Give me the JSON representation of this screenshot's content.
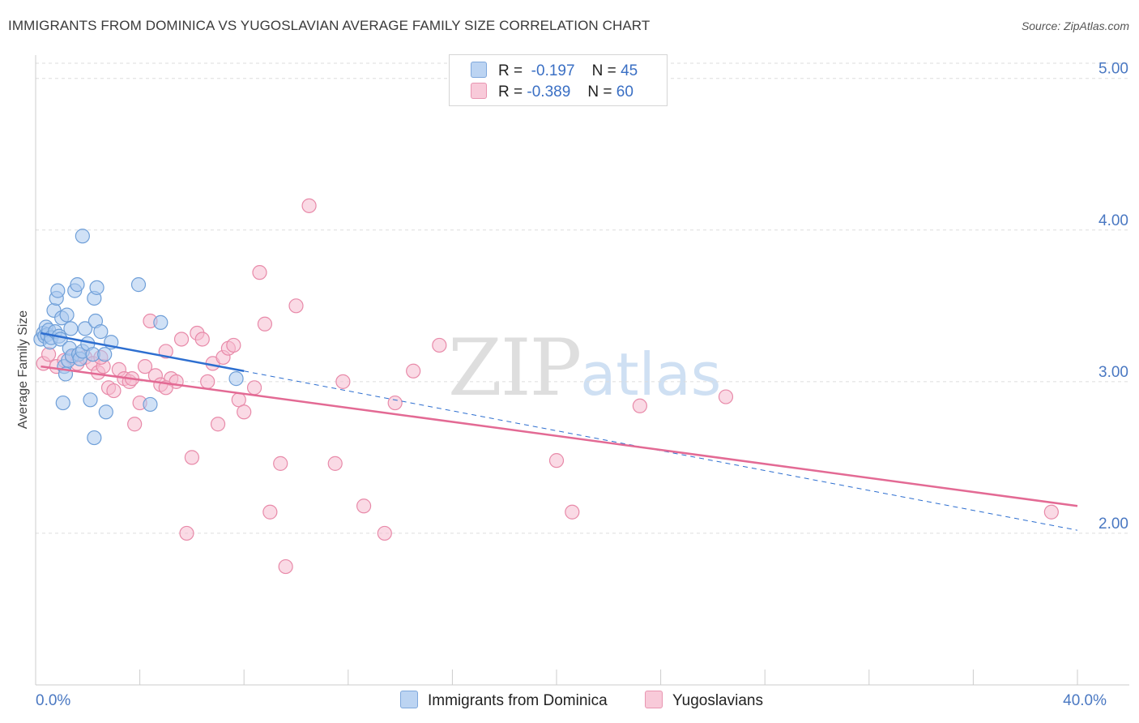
{
  "header": {
    "title": "IMMIGRANTS FROM DOMINICA VS YUGOSLAVIAN AVERAGE FAMILY SIZE CORRELATION CHART",
    "source": "Source: ZipAtlas.com"
  },
  "watermark": {
    "zip": "ZIP",
    "atlas": "atlas"
  },
  "legend": {
    "rows": [
      {
        "r_label": "R =",
        "r_value": "-0.197",
        "n_label": "N =",
        "n_value": "45"
      },
      {
        "r_label": "R =",
        "r_value": "-0.389",
        "n_label": "N =",
        "n_value": "60"
      }
    ]
  },
  "colors": {
    "series1_fill": "#aac8ee",
    "series1_stroke": "#6f9fd8",
    "series1_line": "#2e6fd0",
    "series2_fill": "#f6bcd0",
    "series2_stroke": "#e88aa9",
    "series2_line": "#e36a94",
    "axis_text": "#4a78c2",
    "grid": "#dddddd"
  },
  "chart_data": {
    "type": "scatter",
    "title": "IMMIGRANTS FROM DOMINICA VS YUGOSLAVIAN AVERAGE FAMILY SIZE CORRELATION CHART",
    "xlabel": "",
    "ylabel": "Average Family Size",
    "xlim": [
      0,
      40
    ],
    "ylim": [
      1.0,
      5.1
    ],
    "x_tick_labels": [
      "0.0%",
      "40.0%"
    ],
    "y_ticks": [
      2.0,
      3.0,
      4.0,
      5.0
    ],
    "y_tick_labels": [
      "2.00",
      "3.00",
      "4.00",
      "5.00"
    ],
    "series": [
      {
        "name": "Immigrants from Dominica",
        "R": -0.197,
        "N": 45,
        "trend": {
          "x0": 0.2,
          "y0": 3.32,
          "x1": 8.0,
          "y1": 3.07,
          "dash_to_x": 40.0,
          "dash_to_y": 2.02
        },
        "points": [
          [
            0.2,
            3.28
          ],
          [
            0.3,
            3.32
          ],
          [
            0.35,
            3.3
          ],
          [
            0.4,
            3.36
          ],
          [
            0.45,
            3.31
          ],
          [
            0.5,
            3.34
          ],
          [
            0.55,
            3.26
          ],
          [
            0.6,
            3.29
          ],
          [
            0.7,
            3.47
          ],
          [
            0.75,
            3.33
          ],
          [
            0.8,
            3.55
          ],
          [
            0.85,
            3.6
          ],
          [
            0.9,
            3.3
          ],
          [
            0.95,
            3.28
          ],
          [
            1.0,
            3.42
          ],
          [
            1.05,
            2.86
          ],
          [
            1.1,
            3.1
          ],
          [
            1.15,
            3.05
          ],
          [
            1.2,
            3.44
          ],
          [
            1.25,
            3.14
          ],
          [
            1.3,
            3.22
          ],
          [
            1.35,
            3.35
          ],
          [
            1.4,
            3.17
          ],
          [
            1.5,
            3.6
          ],
          [
            1.6,
            3.64
          ],
          [
            1.65,
            3.18
          ],
          [
            1.7,
            3.15
          ],
          [
            1.8,
            3.2
          ],
          [
            1.9,
            3.35
          ],
          [
            2.0,
            3.25
          ],
          [
            2.1,
            2.88
          ],
          [
            2.25,
            3.55
          ],
          [
            2.35,
            3.62
          ],
          [
            1.8,
            3.96
          ],
          [
            2.2,
            3.18
          ],
          [
            2.3,
            3.4
          ],
          [
            2.5,
            3.33
          ],
          [
            2.65,
            3.18
          ],
          [
            2.25,
            2.63
          ],
          [
            2.7,
            2.8
          ],
          [
            2.9,
            3.26
          ],
          [
            3.95,
            3.64
          ],
          [
            4.4,
            2.85
          ],
          [
            4.8,
            3.39
          ],
          [
            7.7,
            3.02
          ]
        ]
      },
      {
        "name": "Yugoslavians",
        "R": -0.389,
        "N": 60,
        "trend": {
          "x0": 0.2,
          "y0": 3.1,
          "x1": 40.0,
          "y1": 2.18
        },
        "points": [
          [
            0.3,
            3.12
          ],
          [
            0.5,
            3.18
          ],
          [
            0.8,
            3.1
          ],
          [
            1.1,
            3.14
          ],
          [
            1.4,
            3.16
          ],
          [
            1.6,
            3.12
          ],
          [
            1.9,
            3.16
          ],
          [
            2.2,
            3.12
          ],
          [
            2.4,
            3.06
          ],
          [
            2.6,
            3.1
          ],
          [
            2.8,
            2.96
          ],
          [
            3.0,
            2.94
          ],
          [
            3.2,
            3.08
          ],
          [
            3.4,
            3.02
          ],
          [
            3.6,
            3.0
          ],
          [
            3.8,
            2.72
          ],
          [
            4.0,
            2.86
          ],
          [
            4.2,
            3.1
          ],
          [
            4.4,
            3.4
          ],
          [
            4.6,
            3.04
          ],
          [
            4.8,
            2.98
          ],
          [
            5.0,
            3.2
          ],
          [
            5.2,
            3.02
          ],
          [
            5.4,
            3.0
          ],
          [
            5.6,
            3.28
          ],
          [
            5.8,
            2.0
          ],
          [
            6.0,
            2.5
          ],
          [
            6.2,
            3.32
          ],
          [
            6.4,
            3.28
          ],
          [
            6.6,
            3.0
          ],
          [
            6.8,
            3.12
          ],
          [
            7.0,
            2.72
          ],
          [
            7.2,
            3.16
          ],
          [
            7.4,
            3.22
          ],
          [
            7.6,
            3.24
          ],
          [
            7.8,
            2.88
          ],
          [
            8.0,
            2.8
          ],
          [
            8.4,
            2.96
          ],
          [
            8.6,
            3.72
          ],
          [
            8.8,
            3.38
          ],
          [
            9.0,
            2.14
          ],
          [
            9.4,
            2.46
          ],
          [
            9.6,
            1.78
          ],
          [
            10.0,
            3.5
          ],
          [
            10.5,
            4.16
          ],
          [
            11.5,
            2.46
          ],
          [
            11.8,
            3.0
          ],
          [
            12.6,
            2.18
          ],
          [
            13.4,
            2.0
          ],
          [
            13.8,
            2.86
          ],
          [
            14.5,
            3.07
          ],
          [
            15.5,
            3.24
          ],
          [
            20.0,
            2.48
          ],
          [
            20.6,
            2.14
          ],
          [
            23.2,
            2.84
          ],
          [
            26.5,
            2.9
          ],
          [
            39.0,
            2.14
          ],
          [
            3.7,
            3.02
          ],
          [
            5.0,
            2.96
          ],
          [
            2.5,
            3.16
          ]
        ]
      }
    ]
  }
}
